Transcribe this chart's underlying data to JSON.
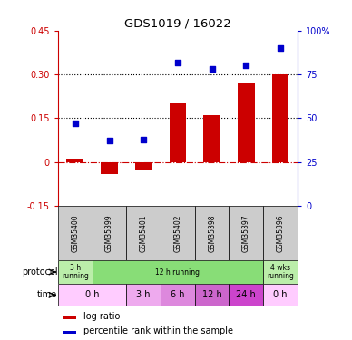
{
  "title": "GDS1019 / 16022",
  "samples": [
    "GSM35400",
    "GSM35399",
    "GSM35401",
    "GSM35402",
    "GSM35398",
    "GSM35397",
    "GSM35396"
  ],
  "log_ratio": [
    0.01,
    -0.04,
    -0.03,
    0.2,
    0.16,
    0.27,
    0.3
  ],
  "percentile_rank": [
    47,
    37,
    38,
    82,
    78,
    80,
    90
  ],
  "ylim_left": [
    -0.15,
    0.45
  ],
  "ylim_right": [
    0,
    100
  ],
  "yticks_left": [
    -0.15,
    0,
    0.15,
    0.3,
    0.45
  ],
  "yticks_right": [
    0,
    25,
    50,
    75,
    100
  ],
  "ytick_labels_left": [
    "-0.15",
    "0",
    "0.15",
    "0.30",
    "0.45"
  ],
  "ytick_labels_right": [
    "0",
    "25",
    "50",
    "75",
    "100%"
  ],
  "bar_color": "#cc0000",
  "scatter_color": "#0000cc",
  "protocol_row": [
    {
      "label": "3 h\nrunning",
      "span": [
        0,
        1
      ],
      "color": "#bbeeaa"
    },
    {
      "label": "12 h running",
      "span": [
        1,
        6
      ],
      "color": "#88dd77"
    },
    {
      "label": "4 wks\nrunning",
      "span": [
        6,
        7
      ],
      "color": "#bbeeaa"
    }
  ],
  "time_row": [
    {
      "label": "0 h",
      "span": [
        0,
        2
      ],
      "color": "#ffccff"
    },
    {
      "label": "3 h",
      "span": [
        2,
        3
      ],
      "color": "#eeaaee"
    },
    {
      "label": "6 h",
      "span": [
        3,
        4
      ],
      "color": "#dd88dd"
    },
    {
      "label": "12 h",
      "span": [
        4,
        5
      ],
      "color": "#cc66cc"
    },
    {
      "label": "24 h",
      "span": [
        5,
        6
      ],
      "color": "#cc44cc"
    },
    {
      "label": "0 h",
      "span": [
        6,
        7
      ],
      "color": "#ffccff"
    }
  ],
  "legend_bar_color": "#cc0000",
  "legend_scatter_color": "#0000cc",
  "legend_bar_label": "log ratio",
  "legend_scatter_label": "percentile rank within the sample",
  "left_axis_color": "#cc0000",
  "right_axis_color": "#0000cc",
  "sample_bg": "#cccccc"
}
